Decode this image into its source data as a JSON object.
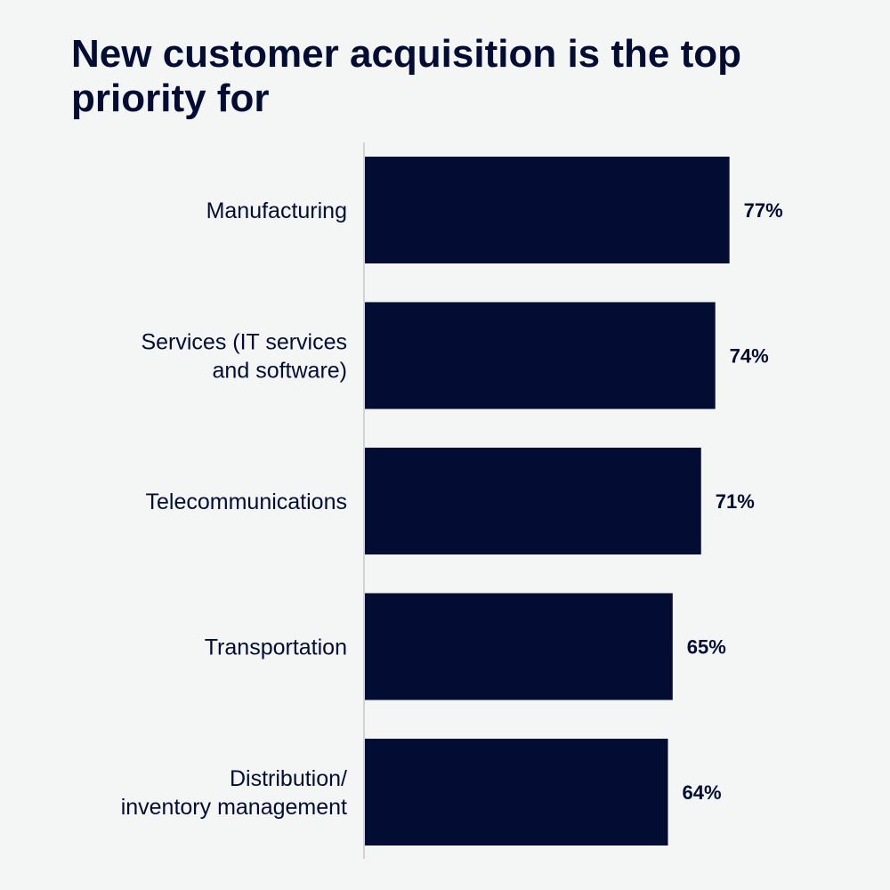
{
  "chart_data": {
    "type": "bar",
    "orientation": "horizontal",
    "title": "New customer acquisition is the top priority for",
    "xlabel": "",
    "ylabel": "",
    "xlim": [
      0,
      100
    ],
    "grid": false,
    "categories": [
      [
        "Manufacturing"
      ],
      [
        "Services (IT services",
        "and software)"
      ],
      [
        "Telecommunications"
      ],
      [
        "Transportation"
      ],
      [
        "Distribution/",
        "inventory management"
      ]
    ],
    "values": [
      77,
      74,
      71,
      65,
      64
    ],
    "value_labels": [
      "77%",
      "74%",
      "71%",
      "65%",
      "64%"
    ],
    "colors": {
      "bar": "#030c33",
      "axis": "#cfd3d6",
      "background": "#f4f6f6"
    }
  }
}
